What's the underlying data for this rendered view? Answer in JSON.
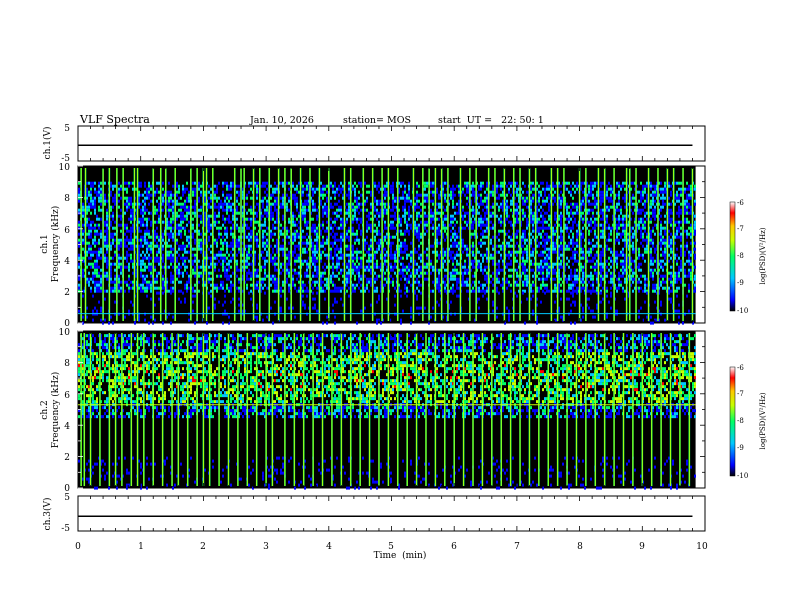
{
  "header": {
    "title": "VLF Spectra",
    "date": "Jan. 10, 2026",
    "station": "station= MOS",
    "start": "start  UT =   22: 50: 1"
  },
  "colors": {
    "spectrum": [
      "#000000",
      "#0000ff",
      "#00c8ff",
      "#00ff64",
      "#c8ff00",
      "#ffc800",
      "#ff0000",
      "#ffffff"
    ]
  },
  "chart_data": [
    {
      "type": "line",
      "name": "ch1-voltage",
      "ylabel": "ch.1(V)",
      "ylim": [
        -5,
        5
      ],
      "yticks": [
        "5",
        "-5"
      ],
      "x": [
        0,
        10
      ],
      "y": [
        -0.5,
        -0.5
      ]
    },
    {
      "type": "heatmap",
      "name": "ch1-spectrogram",
      "ylabel_line1": "ch.1",
      "ylabel_line2": "Frequency (kHz)",
      "ylim": [
        0,
        10
      ],
      "xlim": [
        0,
        10
      ],
      "data_xmax": 9.85,
      "yticks": [
        "0",
        "2",
        "4",
        "6",
        "8",
        "10"
      ],
      "colorbar_label": "log(PSD)(V²/Hz)",
      "colorbar_ticks": [
        "-6",
        "-7",
        "-8",
        "-9",
        "-10"
      ],
      "colorbar_range": [
        -10,
        -6
      ],
      "hline_khz": 0.6,
      "band_khz": [
        2,
        9
      ],
      "spikes_min": [
        0.05,
        0.12,
        0.4,
        0.5,
        0.62,
        0.72,
        0.9,
        0.95,
        1.2,
        1.32,
        1.4,
        1.55,
        1.8,
        1.9,
        2.0,
        2.05,
        2.15,
        2.5,
        2.6,
        2.65,
        2.8,
        2.9,
        3.05,
        3.2,
        3.3,
        3.4,
        3.55,
        3.7,
        3.85,
        4.0,
        4.25,
        4.35,
        4.55,
        4.7,
        4.85,
        4.95,
        5.1,
        5.35,
        5.5,
        5.6,
        5.7,
        5.8,
        5.9,
        6.1,
        6.25,
        6.35,
        6.55,
        6.65,
        6.8,
        6.95,
        7.05,
        7.2,
        7.3,
        7.55,
        7.65,
        7.75,
        8.0,
        8.1,
        8.3,
        8.4,
        8.55,
        8.75,
        8.8,
        8.9,
        9.1,
        9.25,
        9.4,
        9.5,
        9.65,
        9.8
      ]
    },
    {
      "type": "heatmap",
      "name": "ch2-spectrogram",
      "ylabel_line1": "ch.2",
      "ylabel_line2": "Frequency (kHz)",
      "ylim": [
        0,
        10
      ],
      "xlim": [
        0,
        10
      ],
      "data_xmax": 9.85,
      "yticks": [
        "0",
        "2",
        "4",
        "6",
        "8",
        "10"
      ],
      "colorbar_label": "log(PSD)(V²/Hz)",
      "colorbar_ticks": [
        "-6",
        "-7",
        "-8",
        "-9",
        "-10"
      ],
      "colorbar_range": [
        -10,
        -6
      ],
      "hline_khz": 5.3,
      "band_khz": [
        4.5,
        9.8
      ],
      "spikes_min": [
        0.05,
        0.1,
        0.2,
        0.35,
        0.5,
        0.6,
        0.7,
        0.85,
        0.95,
        1.05,
        1.2,
        1.35,
        1.5,
        1.6,
        1.75,
        1.9,
        2.0,
        2.1,
        2.25,
        2.4,
        2.55,
        2.7,
        2.85,
        3.0,
        3.1,
        3.3,
        3.45,
        3.6,
        3.75,
        3.9,
        4.05,
        4.2,
        4.35,
        4.5,
        4.65,
        4.8,
        4.95,
        5.1,
        5.25,
        5.4,
        5.55,
        5.7,
        5.85,
        6.0,
        6.15,
        6.3,
        6.45,
        6.6,
        6.75,
        6.9,
        7.05,
        7.2,
        7.35,
        7.5,
        7.65,
        7.8,
        7.95,
        8.1,
        8.25,
        8.4,
        8.55,
        8.7,
        8.85,
        9.0,
        9.15,
        9.3,
        9.45,
        9.6,
        9.75
      ]
    },
    {
      "type": "line",
      "name": "ch3-voltage",
      "ylabel": "ch.3(V)",
      "ylim": [
        -5,
        5
      ],
      "yticks": [
        "5",
        "-5"
      ],
      "xlabel": "Time  (min)",
      "xticks": [
        "0",
        "1",
        "2",
        "3",
        "4",
        "5",
        "6",
        "7",
        "8",
        "9",
        "10"
      ],
      "x": [
        0,
        10
      ],
      "y": [
        -0.8,
        -0.8
      ]
    }
  ]
}
